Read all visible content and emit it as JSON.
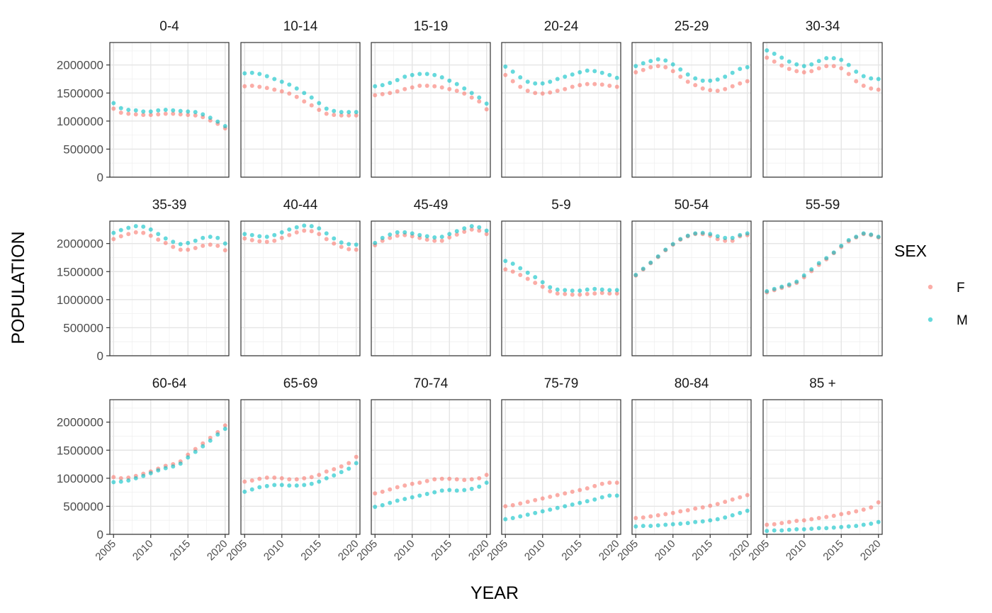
{
  "chart_data": {
    "type": "scatter",
    "facet_by": "age group",
    "xlabel": "YEAR",
    "ylabel": "POPULATION",
    "ylim": [
      0,
      2400000
    ],
    "y_ticks": [
      0,
      500000,
      1000000,
      1500000,
      2000000
    ],
    "y_tick_labels": [
      "0",
      "500000",
      "1000000",
      "1500000",
      "2000000"
    ],
    "xlim": [
      2004.5,
      2020.5
    ],
    "x_ticks": [
      2005,
      2010,
      2015,
      2020
    ],
    "x_tick_labels": [
      "2005",
      "2010",
      "2015",
      "2020"
    ],
    "grid": true,
    "legend": {
      "title": "SEX",
      "position": "right",
      "entries": [
        {
          "name": "F",
          "color": "#F8766D"
        },
        {
          "name": "M",
          "color": "#00BFC4"
        }
      ]
    },
    "x": [
      2005,
      2006,
      2007,
      2008,
      2009,
      2010,
      2011,
      2012,
      2013,
      2014,
      2015,
      2016,
      2017,
      2018,
      2019,
      2020
    ],
    "panels": [
      {
        "label": "0-4",
        "F": [
          1220000,
          1150000,
          1130000,
          1120000,
          1110000,
          1110000,
          1120000,
          1130000,
          1130000,
          1120000,
          1110000,
          1100000,
          1070000,
          1010000,
          950000,
          870000
        ],
        "M": [
          1320000,
          1230000,
          1200000,
          1190000,
          1170000,
          1170000,
          1190000,
          1200000,
          1190000,
          1180000,
          1170000,
          1160000,
          1120000,
          1060000,
          990000,
          910000
        ]
      },
      {
        "label": "10-14",
        "F": [
          1620000,
          1630000,
          1610000,
          1590000,
          1560000,
          1530000,
          1490000,
          1430000,
          1350000,
          1280000,
          1200000,
          1130000,
          1110000,
          1100000,
          1100000,
          1100000
        ],
        "M": [
          1850000,
          1860000,
          1840000,
          1800000,
          1750000,
          1700000,
          1650000,
          1580000,
          1500000,
          1420000,
          1320000,
          1220000,
          1180000,
          1160000,
          1160000,
          1160000
        ]
      },
      {
        "label": "15-19",
        "F": [
          1460000,
          1480000,
          1500000,
          1530000,
          1570000,
          1600000,
          1630000,
          1630000,
          1620000,
          1600000,
          1570000,
          1540000,
          1490000,
          1420000,
          1350000,
          1210000
        ],
        "M": [
          1620000,
          1640000,
          1680000,
          1730000,
          1790000,
          1820000,
          1840000,
          1840000,
          1820000,
          1780000,
          1720000,
          1660000,
          1580000,
          1500000,
          1420000,
          1310000
        ],
        "x_only": true
      },
      {
        "label": "20-24",
        "F": [
          1820000,
          1710000,
          1610000,
          1540000,
          1500000,
          1490000,
          1510000,
          1540000,
          1570000,
          1610000,
          1640000,
          1660000,
          1660000,
          1650000,
          1630000,
          1610000
        ],
        "M": [
          1970000,
          1880000,
          1780000,
          1700000,
          1670000,
          1670000,
          1700000,
          1750000,
          1790000,
          1830000,
          1870000,
          1900000,
          1890000,
          1860000,
          1820000,
          1770000
        ]
      },
      {
        "label": "25-29",
        "F": [
          1870000,
          1910000,
          1960000,
          1980000,
          1960000,
          1890000,
          1790000,
          1700000,
          1640000,
          1580000,
          1550000,
          1540000,
          1570000,
          1620000,
          1670000,
          1710000
        ],
        "M": [
          1980000,
          2030000,
          2070000,
          2100000,
          2080000,
          2010000,
          1920000,
          1830000,
          1760000,
          1720000,
          1720000,
          1740000,
          1790000,
          1860000,
          1930000,
          1960000
        ]
      },
      {
        "label": "30-34",
        "F": [
          2130000,
          2060000,
          1990000,
          1930000,
          1890000,
          1870000,
          1890000,
          1940000,
          1980000,
          1980000,
          1940000,
          1840000,
          1710000,
          1630000,
          1580000,
          1560000
        ],
        "M": [
          2260000,
          2200000,
          2130000,
          2060000,
          2010000,
          1980000,
          2010000,
          2070000,
          2120000,
          2120000,
          2090000,
          2000000,
          1880000,
          1800000,
          1760000,
          1750000
        ]
      },
      {
        "label": "35-39",
        "F": [
          2080000,
          2130000,
          2170000,
          2200000,
          2190000,
          2140000,
          2070000,
          2010000,
          1940000,
          1890000,
          1890000,
          1920000,
          1960000,
          1980000,
          1960000,
          1880000
        ],
        "M": [
          2190000,
          2240000,
          2280000,
          2310000,
          2300000,
          2250000,
          2170000,
          2090000,
          2030000,
          1990000,
          2010000,
          2050000,
          2100000,
          2120000,
          2100000,
          2000000
        ]
      },
      {
        "label": "40-44",
        "F": [
          2090000,
          2060000,
          2040000,
          2030000,
          2050000,
          2100000,
          2150000,
          2200000,
          2230000,
          2220000,
          2170000,
          2080000,
          2000000,
          1940000,
          1900000,
          1890000
        ],
        "M": [
          2170000,
          2150000,
          2130000,
          2120000,
          2150000,
          2200000,
          2250000,
          2290000,
          2320000,
          2310000,
          2270000,
          2180000,
          2090000,
          2020000,
          1990000,
          1980000
        ]
      },
      {
        "label": "45-49",
        "F": [
          1970000,
          2050000,
          2100000,
          2140000,
          2150000,
          2130000,
          2100000,
          2070000,
          2050000,
          2050000,
          2110000,
          2160000,
          2210000,
          2250000,
          2230000,
          2170000
        ],
        "M": [
          2010000,
          2100000,
          2160000,
          2200000,
          2200000,
          2180000,
          2150000,
          2130000,
          2110000,
          2120000,
          2170000,
          2220000,
          2270000,
          2310000,
          2290000,
          2230000
        ]
      },
      {
        "label": "5-9",
        "F": [
          1540000,
          1500000,
          1440000,
          1370000,
          1300000,
          1230000,
          1150000,
          1110000,
          1100000,
          1090000,
          1090000,
          1100000,
          1110000,
          1120000,
          1110000,
          1110000
        ],
        "M": [
          1690000,
          1640000,
          1560000,
          1480000,
          1400000,
          1310000,
          1220000,
          1180000,
          1170000,
          1160000,
          1160000,
          1180000,
          1190000,
          1180000,
          1170000,
          1170000
        ]
      },
      {
        "label": "50-54",
        "F": [
          1430000,
          1540000,
          1650000,
          1760000,
          1880000,
          1980000,
          2070000,
          2130000,
          2170000,
          2170000,
          2140000,
          2080000,
          2050000,
          2050000,
          2130000,
          2150000
        ],
        "M": [
          1440000,
          1550000,
          1660000,
          1770000,
          1890000,
          1990000,
          2080000,
          2140000,
          2180000,
          2190000,
          2170000,
          2130000,
          2100000,
          2100000,
          2150000,
          2180000
        ]
      },
      {
        "label": "55-59",
        "F": [
          1130000,
          1170000,
          1210000,
          1250000,
          1300000,
          1400000,
          1510000,
          1620000,
          1720000,
          1830000,
          1940000,
          2040000,
          2110000,
          2170000,
          2150000,
          2110000
        ],
        "M": [
          1150000,
          1190000,
          1230000,
          1270000,
          1320000,
          1430000,
          1540000,
          1650000,
          1740000,
          1840000,
          1960000,
          2060000,
          2120000,
          2180000,
          2160000,
          2120000
        ]
      },
      {
        "label": "60-64",
        "F": [
          1020000,
          1000000,
          1010000,
          1040000,
          1080000,
          1120000,
          1170000,
          1220000,
          1250000,
          1300000,
          1420000,
          1520000,
          1620000,
          1720000,
          1820000,
          1940000
        ],
        "M": [
          930000,
          940000,
          960000,
          1000000,
          1040000,
          1090000,
          1140000,
          1180000,
          1210000,
          1260000,
          1370000,
          1470000,
          1570000,
          1670000,
          1780000,
          1880000
        ]
      },
      {
        "label": "65-69",
        "F": [
          940000,
          960000,
          990000,
          1010000,
          1010000,
          1000000,
          980000,
          980000,
          1000000,
          1020000,
          1060000,
          1120000,
          1160000,
          1210000,
          1270000,
          1380000
        ],
        "M": [
          760000,
          800000,
          840000,
          860000,
          880000,
          880000,
          870000,
          870000,
          880000,
          900000,
          940000,
          1000000,
          1050000,
          1110000,
          1170000,
          1270000
        ]
      },
      {
        "label": "70-74",
        "F": [
          730000,
          760000,
          800000,
          840000,
          870000,
          900000,
          920000,
          950000,
          980000,
          990000,
          990000,
          980000,
          970000,
          980000,
          1000000,
          1060000
        ],
        "M": [
          490000,
          520000,
          560000,
          600000,
          630000,
          660000,
          690000,
          720000,
          750000,
          780000,
          790000,
          780000,
          790000,
          810000,
          850000,
          920000
        ]
      },
      {
        "label": "75-79",
        "F": [
          500000,
          520000,
          550000,
          580000,
          610000,
          640000,
          670000,
          700000,
          730000,
          760000,
          790000,
          820000,
          860000,
          900000,
          920000,
          920000
        ],
        "M": [
          270000,
          290000,
          320000,
          350000,
          380000,
          410000,
          440000,
          470000,
          500000,
          530000,
          560000,
          590000,
          620000,
          660000,
          690000,
          690000
        ]
      },
      {
        "label": "80-84",
        "F": [
          290000,
          300000,
          320000,
          340000,
          360000,
          380000,
          410000,
          430000,
          460000,
          480000,
          510000,
          540000,
          580000,
          620000,
          660000,
          700000
        ],
        "M": [
          140000,
          150000,
          150000,
          160000,
          170000,
          180000,
          190000,
          200000,
          220000,
          230000,
          250000,
          270000,
          300000,
          340000,
          380000,
          420000
        ]
      },
      {
        "label": "85 +",
        "F": [
          170000,
          180000,
          200000,
          220000,
          240000,
          250000,
          270000,
          290000,
          310000,
          330000,
          360000,
          380000,
          410000,
          440000,
          480000,
          570000
        ],
        "M": [
          60000,
          70000,
          70000,
          80000,
          90000,
          90000,
          100000,
          110000,
          110000,
          120000,
          130000,
          140000,
          150000,
          170000,
          190000,
          220000
        ]
      }
    ]
  }
}
